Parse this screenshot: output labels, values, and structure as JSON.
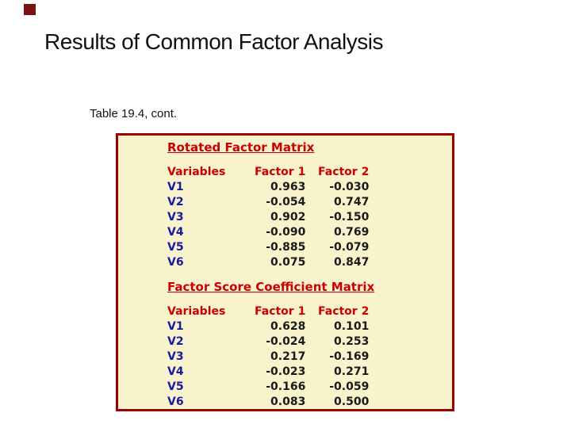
{
  "slide": {
    "title": "Results of Common Factor Analysis",
    "caption": "Table 19.4, cont."
  },
  "colors": {
    "box_background": "#F8F3CD",
    "box_border": "#A00000",
    "heading_red": "#CC0000",
    "variable_navy": "#1A1A9C",
    "value_black": "#1A1A1A",
    "corner_accent_maroon": "#7E1113"
  },
  "table": {
    "sections": [
      {
        "heading": "Rotated Factor Matrix",
        "columns": [
          "Variables",
          "Factor 1",
          "Factor 2"
        ],
        "rows": [
          [
            "V1",
            "0.963",
            "-0.030"
          ],
          [
            "V2",
            "-0.054",
            "0.747"
          ],
          [
            "V3",
            "0.902",
            "-0.150"
          ],
          [
            "V4",
            "-0.090",
            "0.769"
          ],
          [
            "V5",
            "-0.885",
            "-0.079"
          ],
          [
            "V6",
            "0.075",
            "0.847"
          ]
        ]
      },
      {
        "heading": "Factor Score Coefficient Matrix",
        "columns": [
          "Variables",
          "Factor 1",
          "Factor 2"
        ],
        "rows": [
          [
            "V1",
            "0.628",
            "0.101"
          ],
          [
            "V2",
            "-0.024",
            "0.253"
          ],
          [
            "V3",
            "0.217",
            "-0.169"
          ],
          [
            "V4",
            "-0.023",
            "0.271"
          ],
          [
            "V5",
            "-0.166",
            "-0.059"
          ],
          [
            "V6",
            "0.083",
            "0.500"
          ]
        ]
      }
    ]
  }
}
